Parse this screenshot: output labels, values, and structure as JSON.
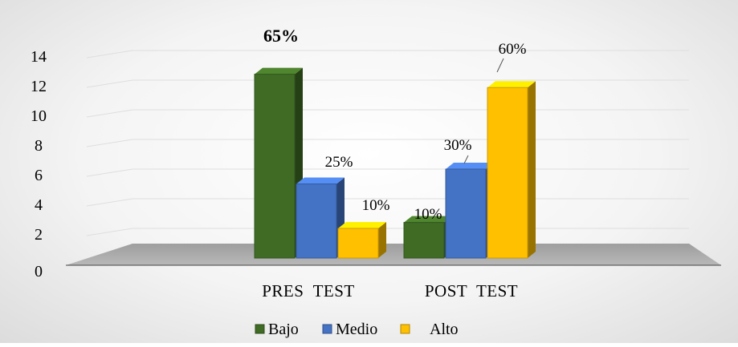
{
  "chart_data": {
    "type": "bar",
    "categories": [
      "PRES  TEST",
      "POST  TEST"
    ],
    "series": [
      {
        "name": "Bajo",
        "values": [
          12.4,
          2.4
        ],
        "labels": [
          "65%",
          "10%"
        ],
        "color": "#3f6b25"
      },
      {
        "name": "Medio",
        "values": [
          5,
          6
        ],
        "labels": [
          "25%",
          "30%"
        ],
        "color": "#4472c4"
      },
      {
        "name": "Alto",
        "values": [
          2,
          11.5
        ],
        "labels": [
          "10%",
          "60%"
        ],
        "color": "#ffc000"
      }
    ],
    "y_ticks": [
      "0",
      "2",
      "4",
      "6",
      "8",
      "10",
      "12",
      "14"
    ],
    "ylim": [
      0,
      14
    ],
    "legend": [
      "Bajo",
      "Medio",
      "Alto"
    ],
    "legend_position": "bottom",
    "grid": true,
    "title": "",
    "xlabel": "",
    "ylabel": ""
  }
}
